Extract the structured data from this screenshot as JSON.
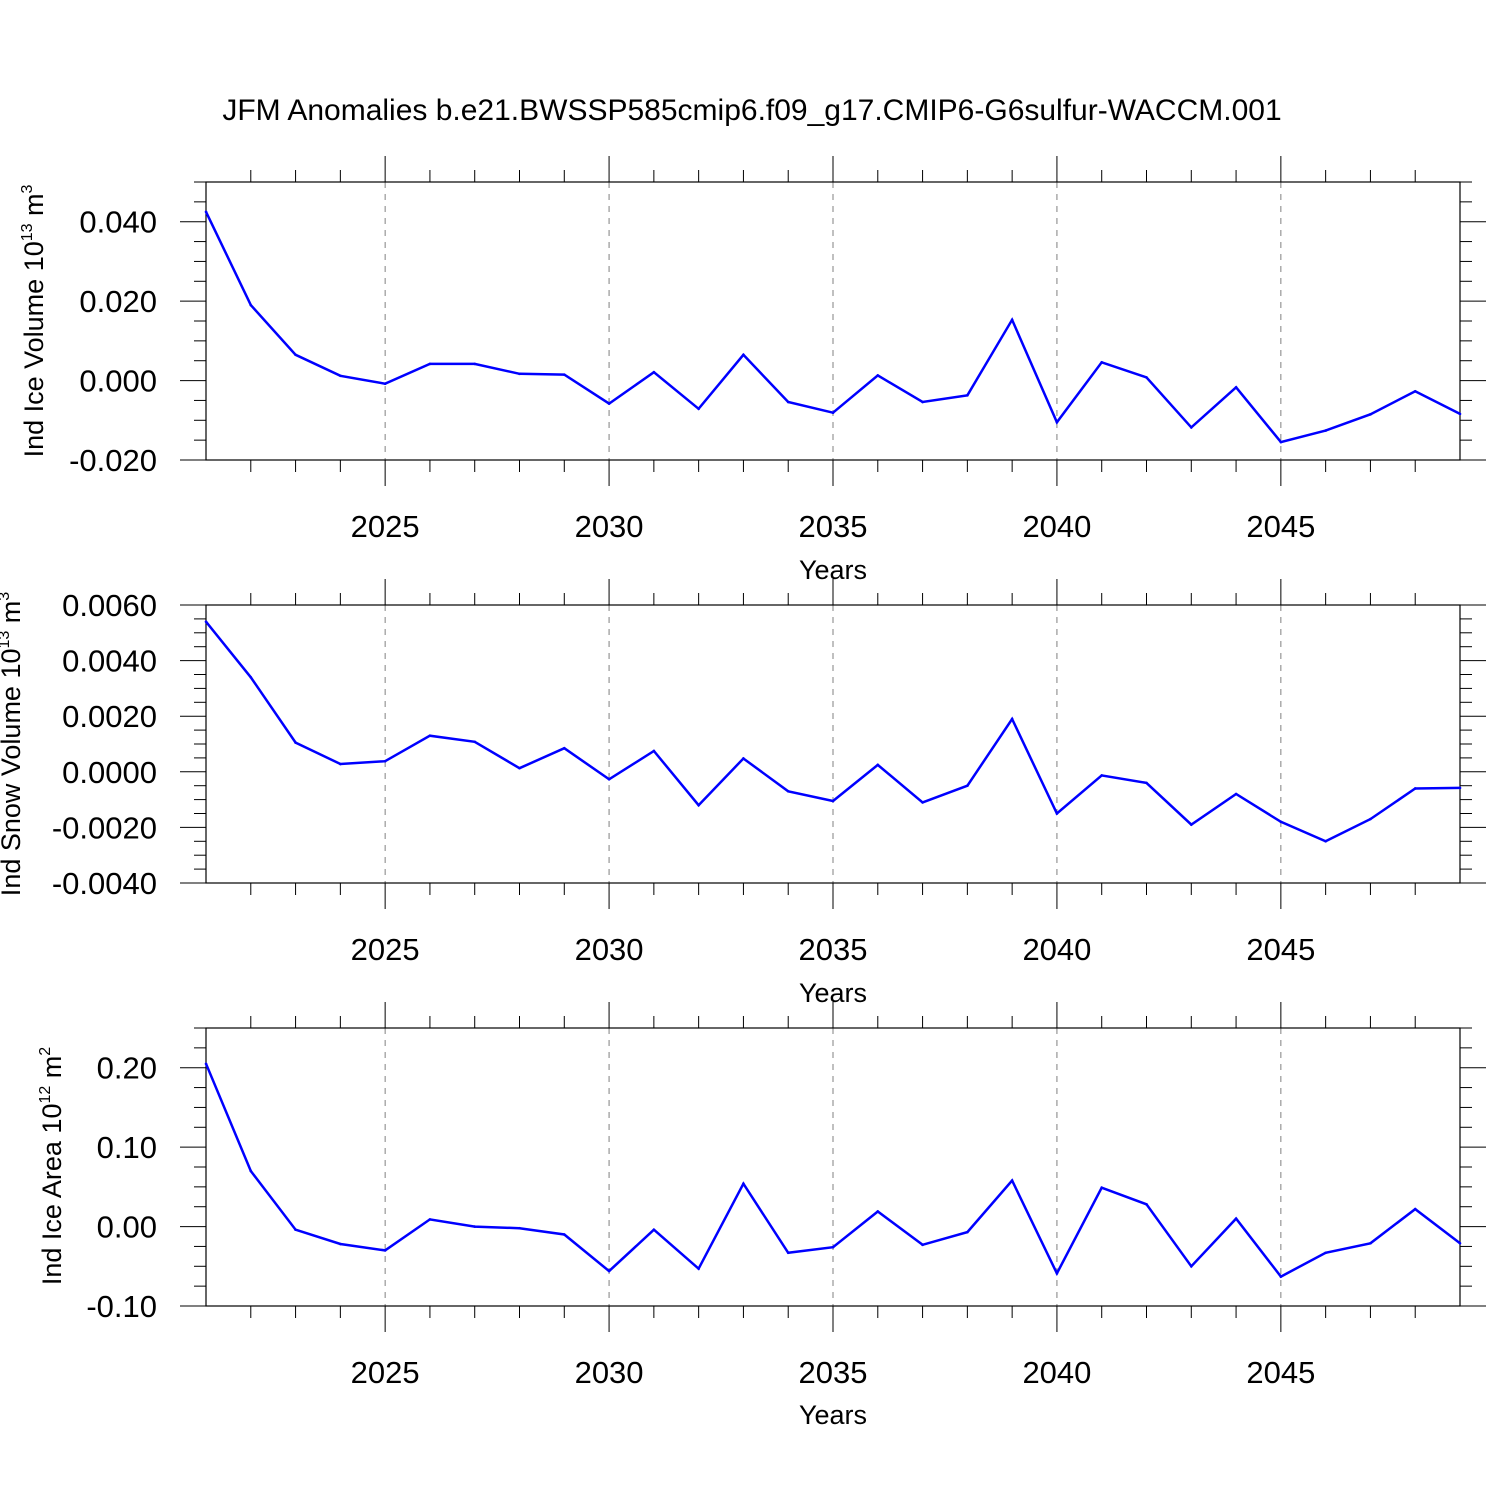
{
  "title": "JFM Anomalies b.e21.BWSSP585cmip6.f09_g17.CMIP6-G6sulfur-WACCM.001",
  "colors": {
    "line": "#0000ff",
    "axis": "#000000",
    "grid": "#808080",
    "background": "#ffffff"
  },
  "chart_data": [
    {
      "type": "line",
      "name": "ice-volume",
      "ylabel_parts": [
        "Ind Ice Volume 10",
        "13",
        " m",
        "3"
      ],
      "xlabel": "Years",
      "xlim": [
        2021,
        2049
      ],
      "ylim": [
        -0.02,
        0.05
      ],
      "x_ticks": [
        2025,
        2030,
        2035,
        2040,
        2045
      ],
      "x_tick_labels": [
        "2025",
        "2030",
        "2035",
        "2040",
        "2045"
      ],
      "y_ticks": [
        -0.02,
        0.0,
        0.02,
        0.04
      ],
      "y_tick_labels": [
        "-0.020",
        "0.000",
        "0.020",
        "0.040"
      ],
      "y_minor_step": 0.005,
      "x": [
        2021,
        2022,
        2023,
        2024,
        2025,
        2026,
        2027,
        2028,
        2029,
        2030,
        2031,
        2032,
        2033,
        2034,
        2035,
        2036,
        2037,
        2038,
        2039,
        2040,
        2041,
        2042,
        2043,
        2044,
        2045,
        2046,
        2047,
        2048,
        2049
      ],
      "values": [
        0.0425,
        0.019,
        0.0065,
        0.0012,
        -0.0008,
        0.0042,
        0.0042,
        0.0017,
        0.0015,
        -0.0058,
        0.0021,
        -0.0071,
        0.0065,
        -0.0054,
        -0.0081,
        0.0013,
        -0.0054,
        -0.0037,
        0.0153,
        -0.0105,
        0.0046,
        0.0008,
        -0.0118,
        -0.0017,
        -0.0155,
        -0.0126,
        -0.0085,
        -0.0027,
        -0.0084
      ]
    },
    {
      "type": "line",
      "name": "snow-volume",
      "ylabel_parts": [
        "Ind Snow Volume 10",
        "13",
        " m",
        "3"
      ],
      "xlabel": "Years",
      "xlim": [
        2021,
        2049
      ],
      "ylim": [
        -0.004,
        0.006
      ],
      "x_ticks": [
        2025,
        2030,
        2035,
        2040,
        2045
      ],
      "x_tick_labels": [
        "2025",
        "2030",
        "2035",
        "2040",
        "2045"
      ],
      "y_ticks": [
        -0.004,
        -0.002,
        0.0,
        0.002,
        0.004,
        0.006
      ],
      "y_tick_labels": [
        "-0.0040",
        "-0.0020",
        "0.0000",
        "0.0020",
        "0.0040",
        "0.0060"
      ],
      "y_minor_step": 0.0005,
      "x": [
        2021,
        2022,
        2023,
        2024,
        2025,
        2026,
        2027,
        2028,
        2029,
        2030,
        2031,
        2032,
        2033,
        2034,
        2035,
        2036,
        2037,
        2038,
        2039,
        2040,
        2041,
        2042,
        2043,
        2044,
        2045,
        2046,
        2047,
        2048,
        2049
      ],
      "values": [
        0.0054,
        0.0034,
        0.00105,
        0.00028,
        0.00038,
        0.0013,
        0.00108,
        0.00013,
        0.00085,
        -0.00027,
        0.00075,
        -0.0012,
        0.00048,
        -0.0007,
        -0.00105,
        0.00025,
        -0.0011,
        -0.0005,
        0.0019,
        -0.0015,
        -0.00013,
        -0.0004,
        -0.0019,
        -0.0008,
        -0.0018,
        -0.0025,
        -0.0017,
        -0.0006,
        -0.00058
      ]
    },
    {
      "type": "line",
      "name": "ice-area",
      "ylabel_parts": [
        "Ind Ice Area 10",
        "12",
        " m",
        "2"
      ],
      "xlabel": "Years",
      "xlim": [
        2021,
        2049
      ],
      "ylim": [
        -0.1,
        0.25
      ],
      "x_ticks": [
        2025,
        2030,
        2035,
        2040,
        2045
      ],
      "x_tick_labels": [
        "2025",
        "2030",
        "2035",
        "2040",
        "2045"
      ],
      "y_ticks": [
        -0.1,
        0.0,
        0.1,
        0.2
      ],
      "y_tick_labels": [
        "-0.10",
        "0.00",
        "0.10",
        "0.20"
      ],
      "y_minor_step": 0.025,
      "x": [
        2021,
        2022,
        2023,
        2024,
        2025,
        2026,
        2027,
        2028,
        2029,
        2030,
        2031,
        2032,
        2033,
        2034,
        2035,
        2036,
        2037,
        2038,
        2039,
        2040,
        2041,
        2042,
        2043,
        2044,
        2045,
        2046,
        2047,
        2048,
        2049
      ],
      "values": [
        0.205,
        0.07,
        -0.004,
        -0.022,
        -0.03,
        0.009,
        0.0,
        -0.002,
        -0.01,
        -0.056,
        -0.004,
        -0.053,
        0.054,
        -0.033,
        -0.026,
        0.019,
        -0.023,
        -0.007,
        0.058,
        -0.059,
        0.049,
        0.028,
        -0.05,
        0.01,
        -0.063,
        -0.033,
        -0.021,
        0.022,
        -0.021
      ]
    }
  ]
}
